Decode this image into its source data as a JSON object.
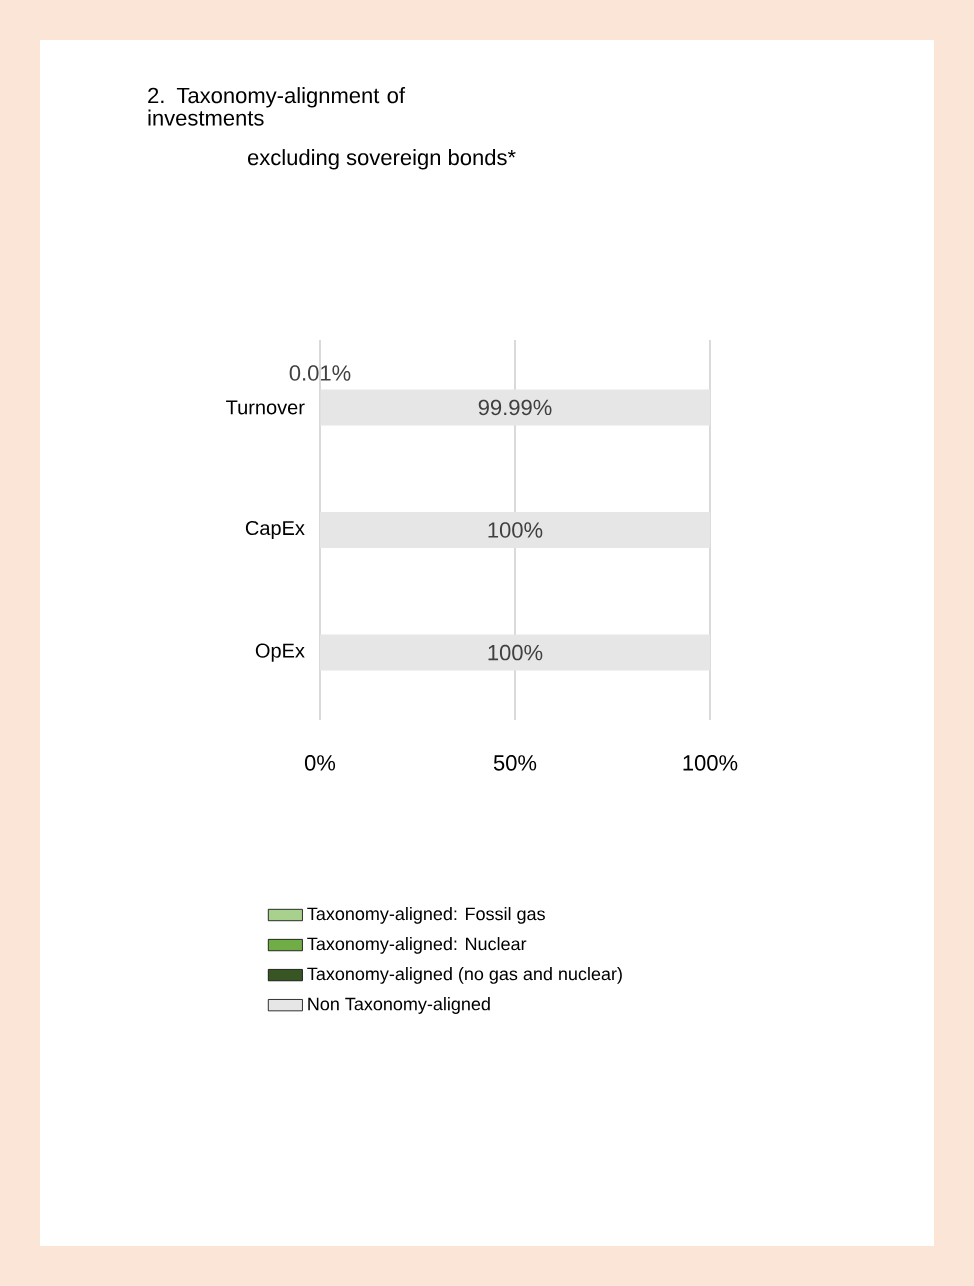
{
  "chart_data": {
    "type": "bar",
    "orientation": "horizontal",
    "stacked": true,
    "title": "2. Taxonomy-alignment of investments",
    "subtitle": "excluding sovereign bonds*",
    "categories": [
      "Turnover",
      "CapEx",
      "OpEx"
    ],
    "series": [
      {
        "name": "Taxonomy-aligned: Fossil gas",
        "color": "#a9d18e",
        "values": [
          0,
          0,
          0
        ]
      },
      {
        "name": "Taxonomy-aligned:  Nuclear",
        "color": "#70ad47",
        "values": [
          0,
          0,
          0
        ]
      },
      {
        "name": "Taxonomy-aligned (no gas and nuclear)",
        "color": "#375623",
        "values": [
          0.01,
          0,
          0
        ],
        "value_labels": [
          "0.01%",
          null,
          null
        ]
      },
      {
        "name": "Non Taxonomy-aligned",
        "color": "#e7e6e6",
        "values": [
          99.99,
          100,
          100
        ],
        "value_labels": [
          "99.99%",
          "100%",
          "100%"
        ]
      }
    ],
    "xlim": [
      0,
      100
    ],
    "xticks": [
      {
        "value": 0,
        "label": "0%"
      },
      {
        "value": 50,
        "label": "50%"
      },
      {
        "value": 100,
        "label": "100%"
      }
    ],
    "grid": "x",
    "legend": "bottom"
  }
}
